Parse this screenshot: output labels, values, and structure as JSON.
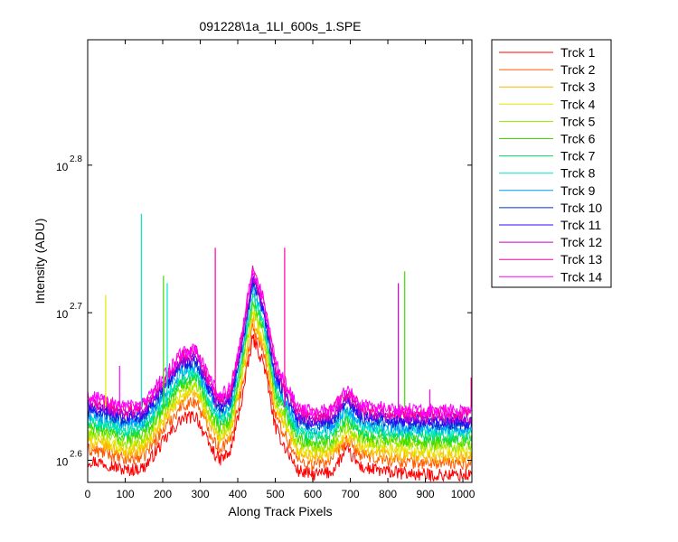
{
  "chart_data": {
    "type": "line",
    "title": "091228\\1a_1LI_600s_1.SPE",
    "xlabel": "Along Track Pixels",
    "ylabel": "Intensity (ADU)",
    "xlim": [
      0,
      1024
    ],
    "ylim": [
      2.585,
      2.885
    ],
    "yscale": "log",
    "grid": false,
    "legend_position": "outside-right",
    "x_ticks": [
      "0",
      "100",
      "200",
      "300",
      "400",
      "500",
      "600",
      "700",
      "800",
      "900",
      "1000"
    ],
    "x_tick_values": [
      0,
      100,
      200,
      300,
      400,
      500,
      600,
      700,
      800,
      900,
      1000
    ],
    "y_ticks": [
      {
        "base": "10",
        "exp": "2.6",
        "value": 2.6
      },
      {
        "base": "10",
        "exp": "2.7",
        "value": 2.7
      },
      {
        "base": "10",
        "exp": "2.8",
        "value": 2.8
      }
    ],
    "profile_x": [
      0,
      50,
      100,
      150,
      200,
      250,
      290,
      320,
      350,
      380,
      410,
      440,
      470,
      500,
      530,
      560,
      600,
      650,
      690,
      730,
      800,
      900,
      1024
    ],
    "series": [
      {
        "name": "Trck 1",
        "color": "#ff0000",
        "y": [
          2.6,
          2.598,
          2.593,
          2.595,
          2.612,
          2.628,
          2.63,
          2.612,
          2.6,
          2.605,
          2.64,
          2.683,
          2.665,
          2.622,
          2.607,
          2.593,
          2.59,
          2.592,
          2.607,
          2.595,
          2.592,
          2.59,
          2.59
        ]
      },
      {
        "name": "Trck 2",
        "color": "#ff5a00",
        "y": [
          2.607,
          2.605,
          2.6,
          2.603,
          2.62,
          2.637,
          2.64,
          2.622,
          2.608,
          2.613,
          2.648,
          2.69,
          2.672,
          2.63,
          2.615,
          2.6,
          2.597,
          2.6,
          2.613,
          2.603,
          2.6,
          2.598,
          2.598
        ]
      },
      {
        "name": "Trck 3",
        "color": "#ffb400",
        "y": [
          2.612,
          2.61,
          2.605,
          2.608,
          2.625,
          2.642,
          2.645,
          2.627,
          2.613,
          2.618,
          2.653,
          2.696,
          2.677,
          2.635,
          2.62,
          2.605,
          2.602,
          2.604,
          2.617,
          2.607,
          2.604,
          2.602,
          2.602
        ]
      },
      {
        "name": "Trck 4",
        "color": "#e6e600",
        "y": [
          2.615,
          2.613,
          2.608,
          2.611,
          2.628,
          2.645,
          2.648,
          2.63,
          2.616,
          2.621,
          2.657,
          2.7,
          2.68,
          2.638,
          2.623,
          2.608,
          2.605,
          2.607,
          2.62,
          2.61,
          2.607,
          2.606,
          2.606
        ]
      },
      {
        "name": "Trck 5",
        "color": "#96e600",
        "y": [
          2.619,
          2.617,
          2.612,
          2.615,
          2.632,
          2.649,
          2.652,
          2.634,
          2.62,
          2.625,
          2.661,
          2.704,
          2.684,
          2.642,
          2.627,
          2.612,
          2.609,
          2.611,
          2.624,
          2.614,
          2.611,
          2.61,
          2.61
        ]
      },
      {
        "name": "Trck 6",
        "color": "#3cdc00",
        "y": [
          2.622,
          2.62,
          2.615,
          2.618,
          2.635,
          2.652,
          2.655,
          2.637,
          2.623,
          2.628,
          2.664,
          2.708,
          2.688,
          2.645,
          2.63,
          2.615,
          2.612,
          2.614,
          2.627,
          2.617,
          2.614,
          2.613,
          2.613
        ]
      },
      {
        "name": "Trck 7",
        "color": "#00dc64",
        "y": [
          2.625,
          2.623,
          2.618,
          2.621,
          2.638,
          2.655,
          2.658,
          2.64,
          2.626,
          2.631,
          2.667,
          2.711,
          2.691,
          2.648,
          2.633,
          2.618,
          2.615,
          2.617,
          2.63,
          2.62,
          2.617,
          2.616,
          2.616
        ]
      },
      {
        "name": "Trck 8",
        "color": "#00e6c8",
        "y": [
          2.628,
          2.626,
          2.621,
          2.624,
          2.641,
          2.658,
          2.661,
          2.643,
          2.629,
          2.634,
          2.67,
          2.714,
          2.694,
          2.651,
          2.636,
          2.621,
          2.618,
          2.62,
          2.633,
          2.623,
          2.62,
          2.619,
          2.619
        ]
      },
      {
        "name": "Trck 9",
        "color": "#0096ff",
        "y": [
          2.631,
          2.629,
          2.624,
          2.627,
          2.644,
          2.661,
          2.664,
          2.646,
          2.632,
          2.637,
          2.673,
          2.718,
          2.697,
          2.654,
          2.639,
          2.624,
          2.621,
          2.623,
          2.636,
          2.626,
          2.623,
          2.622,
          2.622
        ]
      },
      {
        "name": "Trck 10",
        "color": "#0032c8",
        "y": [
          2.634,
          2.632,
          2.627,
          2.63,
          2.647,
          2.664,
          2.667,
          2.649,
          2.635,
          2.64,
          2.676,
          2.721,
          2.7,
          2.657,
          2.642,
          2.627,
          2.624,
          2.626,
          2.639,
          2.629,
          2.626,
          2.625,
          2.625
        ]
      },
      {
        "name": "Trck 11",
        "color": "#3c00ff",
        "y": [
          2.636,
          2.634,
          2.629,
          2.632,
          2.649,
          2.666,
          2.669,
          2.651,
          2.637,
          2.642,
          2.678,
          2.724,
          2.702,
          2.659,
          2.644,
          2.629,
          2.626,
          2.628,
          2.641,
          2.631,
          2.628,
          2.627,
          2.627
        ]
      },
      {
        "name": "Trck 12",
        "color": "#c800c8",
        "y": [
          2.638,
          2.636,
          2.631,
          2.634,
          2.651,
          2.668,
          2.671,
          2.653,
          2.639,
          2.644,
          2.68,
          2.726,
          2.704,
          2.661,
          2.646,
          2.631,
          2.628,
          2.63,
          2.643,
          2.633,
          2.63,
          2.629,
          2.629
        ]
      },
      {
        "name": "Trck 13",
        "color": "#ff00a0",
        "y": [
          2.641,
          2.639,
          2.634,
          2.637,
          2.654,
          2.671,
          2.674,
          2.656,
          2.642,
          2.647,
          2.683,
          2.728,
          2.707,
          2.664,
          2.649,
          2.634,
          2.631,
          2.633,
          2.646,
          2.636,
          2.633,
          2.632,
          2.632
        ]
      },
      {
        "name": "Trck 14",
        "color": "#ff00ff",
        "y": [
          2.643,
          2.641,
          2.636,
          2.639,
          2.656,
          2.673,
          2.676,
          2.658,
          2.644,
          2.649,
          2.685,
          2.73,
          2.709,
          2.666,
          2.651,
          2.636,
          2.633,
          2.635,
          2.648,
          2.638,
          2.635,
          2.634,
          2.634
        ]
      }
    ],
    "spikes": [
      {
        "x": 48,
        "y": 2.712,
        "color": "#e6e600"
      },
      {
        "x": 85,
        "y": 2.664,
        "color": "#ff00ff"
      },
      {
        "x": 143,
        "y": 2.767,
        "color": "#00e6c8"
      },
      {
        "x": 202,
        "y": 2.725,
        "color": "#3cdc00"
      },
      {
        "x": 212,
        "y": 2.72,
        "color": "#00e6c8"
      },
      {
        "x": 340,
        "y": 2.744,
        "color": "#ff00a0"
      },
      {
        "x": 525,
        "y": 2.744,
        "color": "#ff00a0"
      },
      {
        "x": 828,
        "y": 2.72,
        "color": "#c800c8"
      },
      {
        "x": 845,
        "y": 2.728,
        "color": "#3cdc00"
      },
      {
        "x": 912,
        "y": 2.648,
        "color": "#ff00ff"
      },
      {
        "x": 1022,
        "y": 2.656,
        "color": "#ff00a0"
      }
    ]
  }
}
